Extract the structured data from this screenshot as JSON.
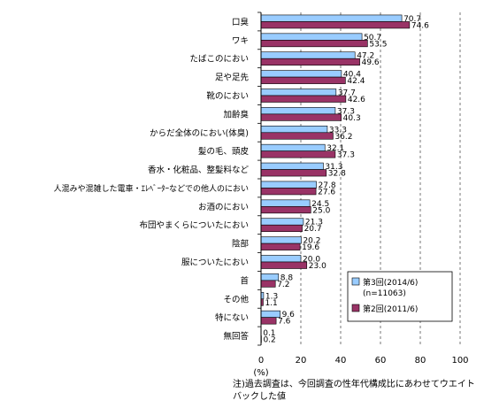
{
  "chart_data": {
    "type": "bar",
    "orientation": "horizontal",
    "categories": [
      "口臭",
      "ワキ",
      "たばこのにおい",
      "足や足先",
      "靴のにおい",
      "加齢臭",
      "からだ全体のにおい(体臭)",
      "髪の毛、頭皮",
      "香水・化粧品、整髪料など",
      "人混みや混雑した電車・ｴﾚﾍﾞｰﾀｰなどでの他人のにおい",
      "お酒のにおい",
      "布団やまくらについたにおい",
      "陰部",
      "服についたにおい",
      "首",
      "その他",
      "特にない",
      "無回答"
    ],
    "series": [
      {
        "name": "第3回(2014/6)",
        "sub": "(n=11063)",
        "color": "#99ccff",
        "values": [
          70.7,
          50.7,
          47.2,
          40.4,
          37.7,
          37.3,
          33.3,
          32.1,
          31.3,
          27.8,
          24.5,
          21.3,
          20.2,
          20.0,
          8.8,
          1.3,
          9.6,
          0.1
        ]
      },
      {
        "name": "第2回(2011/6)",
        "color": "#993366",
        "values": [
          74.6,
          53.5,
          49.6,
          42.4,
          42.6,
          40.3,
          36.2,
          37.3,
          32.8,
          27.6,
          25.0,
          20.7,
          19.6,
          23.0,
          7.2,
          1.1,
          7.6,
          0.2
        ]
      }
    ],
    "value_labels": [
      [
        "70.7",
        "50.7",
        "47.2",
        "40.4",
        "37.7",
        "37.3",
        "33.3",
        "32.1",
        "31.3",
        "27.8",
        "24.5",
        "21.3",
        "20.2",
        "20.0",
        "8.8",
        "1.3",
        "9.6",
        "0.1"
      ],
      [
        "74.6",
        "53.5",
        "49.6",
        "42.4",
        "42.6",
        "40.3",
        "36.2",
        "37.3",
        "32.8",
        "27.6",
        "25.0",
        "20.7",
        "19.6",
        "23.0",
        "7.2",
        "1.1",
        "7.6",
        "0.2"
      ]
    ],
    "x_ticks": [
      "0",
      "20",
      "40",
      "60",
      "80",
      "100"
    ],
    "xlim": [
      0,
      100
    ],
    "xlabel": "(%)",
    "grid": "dashed vertical",
    "legend_position": "bottom-right"
  },
  "note": "注)過去調査は、今回調査の性年代構成比にあわせてウエイトバックした値"
}
